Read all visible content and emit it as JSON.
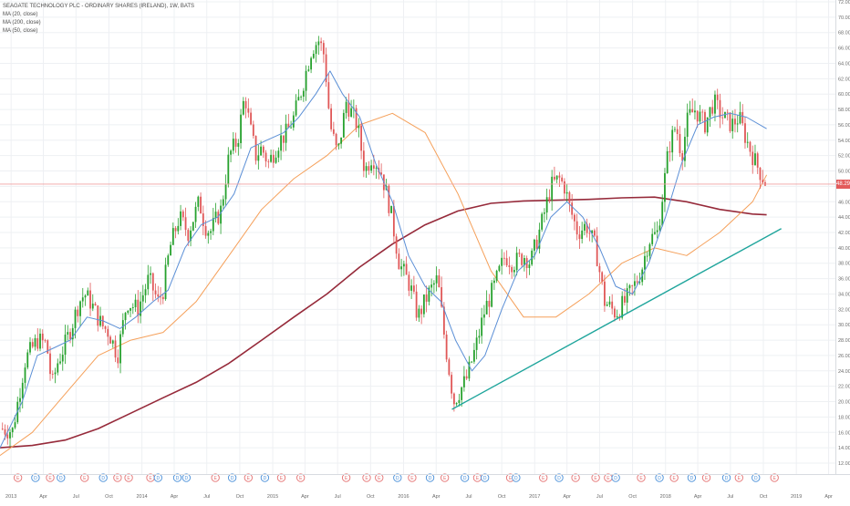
{
  "title": "SEAGATE TECHNOLOGY PLC - ORDINARY SHARES (IRELAND), 1W, BATS",
  "indicators": [
    "MA (20, close)",
    "MA (200, close)",
    "MA (50, close)"
  ],
  "last_price_label": "48.29",
  "colors": {
    "background": "#ffffff",
    "up_candle": "#26a12d",
    "down_candle": "#e05757",
    "ma20": "#5b8fd6",
    "ma50": "#f5a05a",
    "ma200": "#962a3a",
    "trendline": "#1fa59c",
    "price_line": "#f0a0a0",
    "grid": "#eef0f3",
    "axis_text": "#6a6a6a",
    "earnings_circle": "#e57373",
    "dividend_circle": "#4a90d9"
  },
  "chart_data": {
    "type": "candlestick",
    "title": "SEAGATE TECHNOLOGY PLC - ORDINARY SHARES (IRELAND), 1W, BATS",
    "xlabel": "",
    "ylabel": "",
    "interval": "1W",
    "ylim": [
      12.0,
      72.0
    ],
    "y_ticks": [
      "72.00",
      "70.00",
      "68.00",
      "66.00",
      "64.00",
      "62.00",
      "60.00",
      "58.00",
      "56.00",
      "54.00",
      "52.00",
      "50.00",
      "48.00",
      "46.00",
      "44.00",
      "42.00",
      "40.00",
      "38.00",
      "36.00",
      "34.00",
      "32.00",
      "30.00",
      "28.00",
      "26.00",
      "24.00",
      "22.00",
      "20.00",
      "18.00",
      "16.00",
      "14.00",
      "12.00"
    ],
    "x_ticks": [
      "2013",
      "Apr",
      "Jul",
      "Oct",
      "2014",
      "Apr",
      "Jul",
      "Oct",
      "2015",
      "Apr",
      "Jul",
      "Oct",
      "2016",
      "Apr",
      "Jul",
      "Oct",
      "2017",
      "Apr",
      "Jul",
      "Oct",
      "2018",
      "Apr",
      "Jul",
      "Oct",
      "2019",
      "Apr"
    ],
    "x_range": [
      "2012-12-01",
      "2019-04-20"
    ],
    "last_price": 48.29,
    "grid": true,
    "legend_position": "top-left",
    "price_path": [
      [
        "2012-12-01",
        16.5
      ],
      [
        "2013-01-05",
        16.2
      ],
      [
        "2013-02-10",
        25.5
      ],
      [
        "2013-03-15",
        28.0
      ],
      [
        "2013-04-10",
        27.5
      ],
      [
        "2013-04-25",
        22.0
      ],
      [
        "2013-05-10",
        25.0
      ],
      [
        "2013-06-01",
        27.5
      ],
      [
        "2013-06-20",
        30.0
      ],
      [
        "2013-07-10",
        33.0
      ],
      [
        "2013-07-25",
        34.0
      ],
      [
        "2013-08-10",
        33.0
      ],
      [
        "2013-09-10",
        30.0
      ],
      [
        "2013-10-01",
        29.0
      ],
      [
        "2013-10-25",
        26.0
      ],
      [
        "2013-11-20",
        33.0
      ],
      [
        "2013-12-20",
        32.0
      ],
      [
        "2014-01-20",
        36.0
      ],
      [
        "2014-02-15",
        33.0
      ],
      [
        "2014-03-01",
        34.5
      ],
      [
        "2014-03-20",
        40.0
      ],
      [
        "2014-04-15",
        44.0
      ],
      [
        "2014-05-10",
        42.0
      ],
      [
        "2014-06-10",
        46.0
      ],
      [
        "2014-06-25",
        43.0
      ],
      [
        "2014-07-10",
        42.0
      ],
      [
        "2014-08-10",
        45.0
      ],
      [
        "2014-09-01",
        52.0
      ],
      [
        "2014-09-25",
        54.0
      ],
      [
        "2014-10-15",
        60.0
      ],
      [
        "2014-10-28",
        56.0
      ],
      [
        "2014-11-15",
        52.0
      ],
      [
        "2014-12-01",
        53.0
      ],
      [
        "2014-12-20",
        51.0
      ],
      [
        "2015-01-20",
        54.0
      ],
      [
        "2015-02-10",
        55.0
      ],
      [
        "2015-03-01",
        57.0
      ],
      [
        "2015-03-25",
        61.0
      ],
      [
        "2015-04-20",
        66.0
      ],
      [
        "2015-05-10",
        67.0
      ],
      [
        "2015-05-25",
        65.0
      ],
      [
        "2015-06-10",
        56.0
      ],
      [
        "2015-07-01",
        52.0
      ],
      [
        "2015-07-25",
        59.0
      ],
      [
        "2015-08-25",
        56.0
      ],
      [
        "2015-09-15",
        50.0
      ],
      [
        "2015-10-05",
        52.0
      ],
      [
        "2015-10-30",
        50.0
      ],
      [
        "2015-11-25",
        45.0
      ],
      [
        "2015-12-20",
        38.0
      ],
      [
        "2016-01-20",
        35.0
      ],
      [
        "2016-02-10",
        31.0
      ],
      [
        "2016-03-10",
        34.0
      ],
      [
        "2016-04-05",
        36.0
      ],
      [
        "2016-04-25",
        28.0
      ],
      [
        "2016-05-20",
        20.0
      ],
      [
        "2016-06-25",
        23.0
      ],
      [
        "2016-07-20",
        27.0
      ],
      [
        "2016-08-15",
        32.0
      ],
      [
        "2016-09-10",
        35.0
      ],
      [
        "2016-10-10",
        39.0
      ],
      [
        "2016-11-01",
        38.0
      ],
      [
        "2016-12-05",
        39.0
      ],
      [
        "2016-12-20",
        38.0
      ],
      [
        "2017-01-25",
        44.0
      ],
      [
        "2017-02-15",
        48.0
      ],
      [
        "2017-03-10",
        49.0
      ],
      [
        "2017-03-25",
        48.0
      ],
      [
        "2017-04-10",
        45.0
      ],
      [
        "2017-05-01",
        42.0
      ],
      [
        "2017-05-25",
        43.0
      ],
      [
        "2017-06-20",
        40.0
      ],
      [
        "2017-07-15",
        33.0
      ],
      [
        "2017-08-15",
        31.5
      ],
      [
        "2017-09-10",
        33.0
      ],
      [
        "2017-10-05",
        35.0
      ],
      [
        "2017-10-25",
        37.0
      ],
      [
        "2017-11-15",
        41.0
      ],
      [
        "2017-12-10",
        42.0
      ],
      [
        "2018-01-10",
        53.0
      ],
      [
        "2018-01-30",
        56.0
      ],
      [
        "2018-02-15",
        52.0
      ],
      [
        "2018-03-05",
        57.0
      ],
      [
        "2018-03-25",
        58.0
      ],
      [
        "2018-04-20",
        56.0
      ],
      [
        "2018-05-15",
        59.0
      ],
      [
        "2018-06-10",
        57.0
      ],
      [
        "2018-07-05",
        56.0
      ],
      [
        "2018-07-25",
        57.0
      ],
      [
        "2018-08-15",
        54.0
      ],
      [
        "2018-09-10",
        51.0
      ],
      [
        "2018-10-01",
        49.0
      ],
      [
        "2018-10-10",
        48.3
      ]
    ],
    "ma20": [
      [
        "2012-12-01",
        14.0
      ],
      [
        "2013-02-01",
        20.0
      ],
      [
        "2013-03-15",
        26.0
      ],
      [
        "2013-05-01",
        27.0
      ],
      [
        "2013-06-15",
        28.0
      ],
      [
        "2013-08-01",
        31.0
      ],
      [
        "2013-09-15",
        30.5
      ],
      [
        "2013-11-01",
        29.5
      ],
      [
        "2013-12-15",
        31.0
      ],
      [
        "2014-02-01",
        33.0
      ],
      [
        "2014-03-15",
        34.5
      ],
      [
        "2014-05-01",
        40.0
      ],
      [
        "2014-06-15",
        43.0
      ],
      [
        "2014-08-01",
        44.0
      ],
      [
        "2014-09-15",
        47.0
      ],
      [
        "2014-11-01",
        53.0
      ],
      [
        "2014-12-15",
        54.0
      ],
      [
        "2015-02-01",
        55.0
      ],
      [
        "2015-03-15",
        57.0
      ],
      [
        "2015-05-01",
        60.0
      ],
      [
        "2015-06-10",
        63.0
      ],
      [
        "2015-07-15",
        60.0
      ],
      [
        "2015-09-01",
        57.0
      ],
      [
        "2015-10-15",
        51.0
      ],
      [
        "2015-12-01",
        46.0
      ],
      [
        "2016-01-15",
        39.0
      ],
      [
        "2016-03-01",
        35.0
      ],
      [
        "2016-04-15",
        33.0
      ],
      [
        "2016-05-25",
        28.0
      ],
      [
        "2016-07-10",
        24.0
      ],
      [
        "2016-08-15",
        26.0
      ],
      [
        "2016-10-01",
        32.0
      ],
      [
        "2016-11-15",
        37.0
      ],
      [
        "2017-01-01",
        39.0
      ],
      [
        "2017-02-15",
        44.0
      ],
      [
        "2017-04-01",
        46.0
      ],
      [
        "2017-05-15",
        44.0
      ],
      [
        "2017-07-01",
        40.0
      ],
      [
        "2017-08-15",
        35.0
      ],
      [
        "2017-10-01",
        34.0
      ],
      [
        "2017-11-15",
        38.0
      ],
      [
        "2018-01-01",
        44.0
      ],
      [
        "2018-02-15",
        51.0
      ],
      [
        "2018-04-01",
        56.0
      ],
      [
        "2018-05-15",
        57.0
      ],
      [
        "2018-07-01",
        57.5
      ],
      [
        "2018-08-15",
        57.0
      ],
      [
        "2018-10-10",
        55.5
      ]
    ],
    "ma50": [
      [
        "2012-12-01",
        13.0
      ],
      [
        "2013-03-01",
        16.0
      ],
      [
        "2013-06-01",
        21.0
      ],
      [
        "2013-09-01",
        26.0
      ],
      [
        "2013-12-01",
        28.0
      ],
      [
        "2014-03-01",
        29.0
      ],
      [
        "2014-06-01",
        33.0
      ],
      [
        "2014-09-01",
        39.0
      ],
      [
        "2014-12-01",
        45.0
      ],
      [
        "2015-03-01",
        49.0
      ],
      [
        "2015-06-01",
        52.0
      ],
      [
        "2015-09-01",
        56.0
      ],
      [
        "2015-12-01",
        57.5
      ],
      [
        "2016-03-01",
        55.0
      ],
      [
        "2016-06-01",
        47.0
      ],
      [
        "2016-09-01",
        37.0
      ],
      [
        "2016-12-01",
        31.0
      ],
      [
        "2017-03-01",
        31.0
      ],
      [
        "2017-06-01",
        34.0
      ],
      [
        "2017-09-01",
        38.0
      ],
      [
        "2017-12-01",
        40.0
      ],
      [
        "2018-03-01",
        39.0
      ],
      [
        "2018-06-01",
        42.0
      ],
      [
        "2018-09-01",
        46.0
      ],
      [
        "2018-10-10",
        49.5
      ]
    ],
    "ma200": [
      [
        "2012-12-01",
        14.0
      ],
      [
        "2013-03-01",
        14.3
      ],
      [
        "2013-06-01",
        15.0
      ],
      [
        "2013-09-01",
        16.5
      ],
      [
        "2013-12-01",
        18.5
      ],
      [
        "2014-03-01",
        20.5
      ],
      [
        "2014-06-01",
        22.5
      ],
      [
        "2014-09-01",
        25.0
      ],
      [
        "2014-12-01",
        28.0
      ],
      [
        "2015-03-01",
        31.0
      ],
      [
        "2015-06-01",
        34.0
      ],
      [
        "2015-09-01",
        37.5
      ],
      [
        "2015-12-01",
        40.5
      ],
      [
        "2016-03-01",
        43.0
      ],
      [
        "2016-06-01",
        44.8
      ],
      [
        "2016-09-01",
        45.8
      ],
      [
        "2016-12-01",
        46.1
      ],
      [
        "2017-03-01",
        46.2
      ],
      [
        "2017-06-01",
        46.3
      ],
      [
        "2017-09-01",
        46.5
      ],
      [
        "2017-12-01",
        46.6
      ],
      [
        "2018-03-01",
        46.0
      ],
      [
        "2018-06-01",
        45.0
      ],
      [
        "2018-09-01",
        44.4
      ],
      [
        "2018-10-10",
        44.3
      ]
    ],
    "trendline": [
      [
        "2016-05-15",
        19.0
      ],
      [
        "2018-11-20",
        42.5
      ]
    ],
    "event_markers": [
      {
        "date": "2013-01-20",
        "type": "earnings"
      },
      {
        "date": "2013-03-10",
        "type": "dividend"
      },
      {
        "date": "2013-04-20",
        "type": "earnings"
      },
      {
        "date": "2013-05-20",
        "type": "dividend"
      },
      {
        "date": "2013-07-25",
        "type": "earnings"
      },
      {
        "date": "2013-09-15",
        "type": "dividend"
      },
      {
        "date": "2013-10-25",
        "type": "earnings"
      },
      {
        "date": "2013-11-25",
        "type": "earnings"
      },
      {
        "date": "2014-01-25",
        "type": "earnings"
      },
      {
        "date": "2014-02-15",
        "type": "dividend"
      },
      {
        "date": "2014-04-10",
        "type": "dividend"
      },
      {
        "date": "2014-05-05",
        "type": "dividend"
      },
      {
        "date": "2014-07-25",
        "type": "earnings"
      },
      {
        "date": "2014-09-10",
        "type": "dividend"
      },
      {
        "date": "2014-10-25",
        "type": "earnings"
      },
      {
        "date": "2014-12-10",
        "type": "dividend"
      },
      {
        "date": "2015-01-25",
        "type": "earnings"
      },
      {
        "date": "2015-03-20",
        "type": "earnings"
      },
      {
        "date": "2015-07-25",
        "type": "earnings"
      },
      {
        "date": "2015-09-20",
        "type": "earnings"
      },
      {
        "date": "2015-10-25",
        "type": "earnings"
      },
      {
        "date": "2015-12-15",
        "type": "dividend"
      },
      {
        "date": "2016-01-25",
        "type": "earnings"
      },
      {
        "date": "2016-03-15",
        "type": "dividend"
      },
      {
        "date": "2016-04-25",
        "type": "earnings"
      },
      {
        "date": "2016-06-20",
        "type": "dividend"
      },
      {
        "date": "2016-07-25",
        "type": "earnings"
      },
      {
        "date": "2016-08-15",
        "type": "dividend"
      },
      {
        "date": "2016-10-25",
        "type": "earnings"
      },
      {
        "date": "2016-11-10",
        "type": "dividend"
      },
      {
        "date": "2017-01-25",
        "type": "earnings"
      },
      {
        "date": "2017-03-10",
        "type": "dividend"
      },
      {
        "date": "2017-04-25",
        "type": "earnings"
      },
      {
        "date": "2017-06-20",
        "type": "earnings"
      },
      {
        "date": "2017-07-25",
        "type": "earnings"
      },
      {
        "date": "2017-08-15",
        "type": "dividend"
      },
      {
        "date": "2017-10-25",
        "type": "earnings"
      },
      {
        "date": "2017-12-15",
        "type": "dividend"
      },
      {
        "date": "2018-01-25",
        "type": "earnings"
      },
      {
        "date": "2018-03-15",
        "type": "dividend"
      },
      {
        "date": "2018-04-25",
        "type": "earnings"
      },
      {
        "date": "2018-06-20",
        "type": "dividend"
      },
      {
        "date": "2018-07-25",
        "type": "earnings"
      },
      {
        "date": "2018-09-10",
        "type": "dividend"
      },
      {
        "date": "2018-11-01",
        "type": "earnings"
      }
    ]
  }
}
